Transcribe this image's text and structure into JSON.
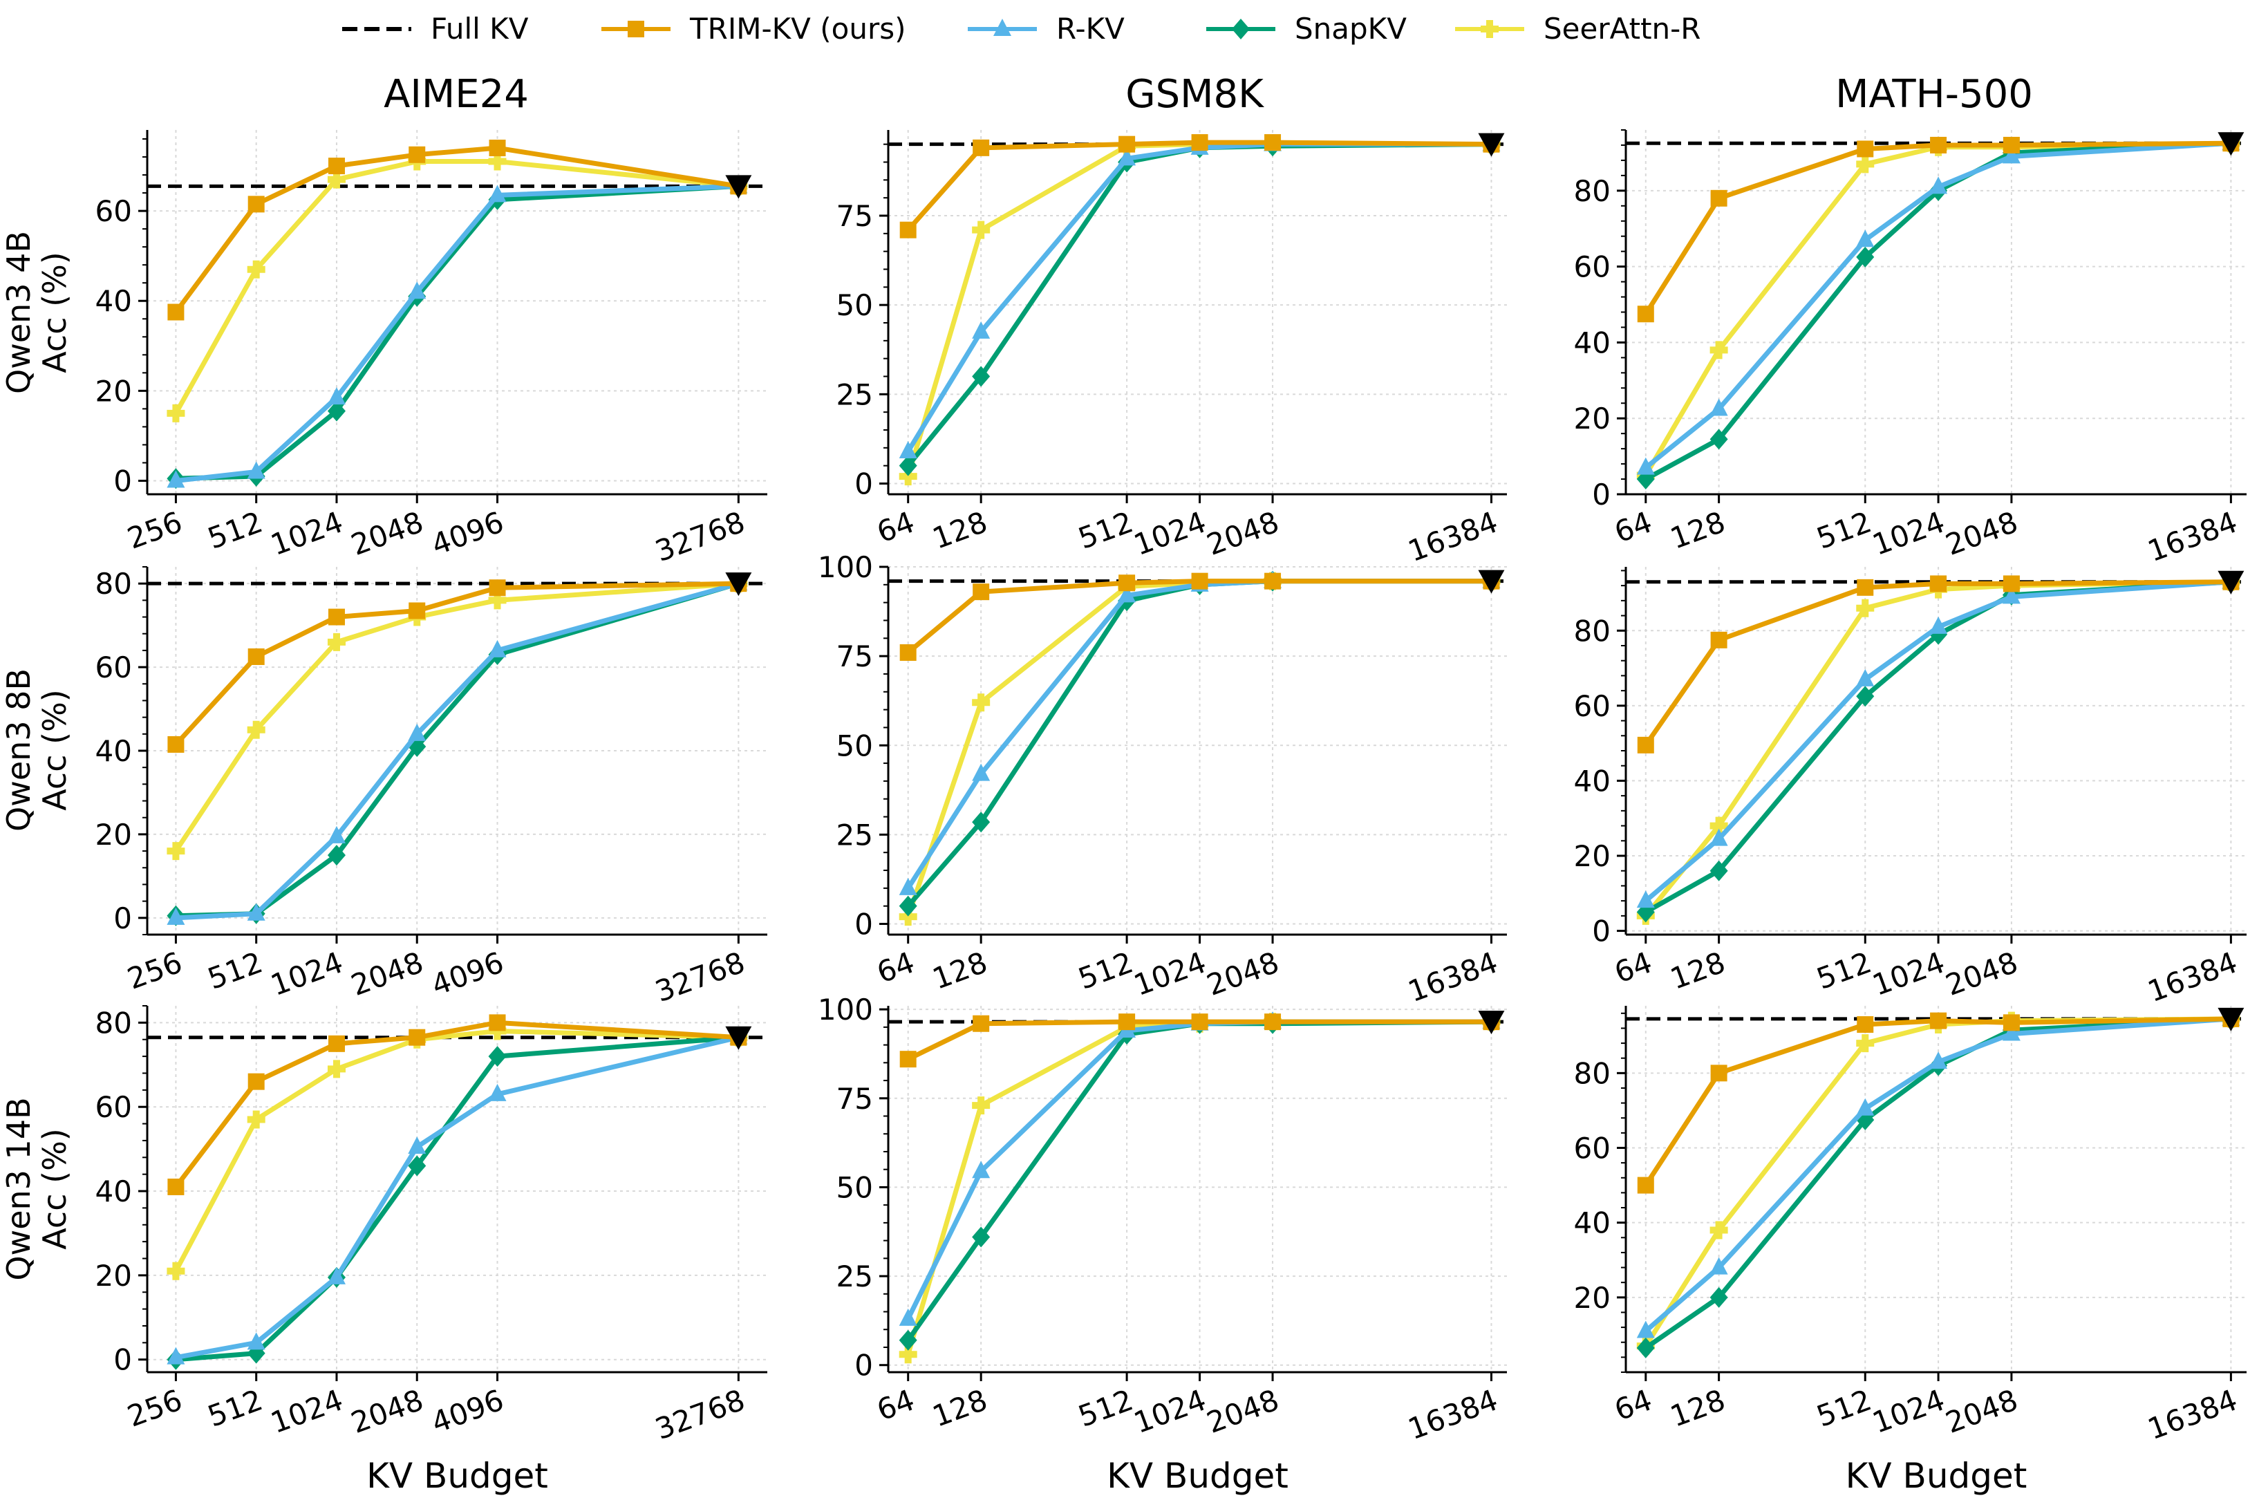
{
  "figure": {
    "column_titles": [
      "AIME24",
      "GSM8K",
      "MATH-500"
    ],
    "row_labels": [
      {
        "line1": "Qwen3 4B",
        "line2": "Acc (%)"
      },
      {
        "line1": "Qwen3 8B",
        "line2": "Acc (%)"
      },
      {
        "line1": "Qwen3 14B",
        "line2": "Acc (%)"
      }
    ],
    "xlabel": "KV Budget"
  },
  "legend": [
    {
      "name": "Full KV",
      "color": "#000000",
      "style": "dashed",
      "marker": "none"
    },
    {
      "name": "TRIM-KV (ours)",
      "color": "#E69F00",
      "style": "solid",
      "marker": "square"
    },
    {
      "name": "R-KV",
      "color": "#56B4E9",
      "style": "solid",
      "marker": "triangle"
    },
    {
      "name": "SnapKV",
      "color": "#009E73",
      "style": "solid",
      "marker": "diamond"
    },
    {
      "name": "SeerAttn-R",
      "color": "#F0E442",
      "style": "solid",
      "marker": "plus"
    }
  ],
  "chart_data": [
    {
      "type": "line",
      "title": "AIME24",
      "ylabel": "Qwen3 4B Acc (%)",
      "xlabel": "",
      "x": [
        256,
        512,
        1024,
        2048,
        4096,
        32768
      ],
      "xlim": [
        200,
        42000
      ],
      "xscale": "log2",
      "yticks": [
        0,
        20,
        40,
        60
      ],
      "ylim": [
        -3,
        78
      ],
      "full_kv": 65.5,
      "full_kv_x": 32768,
      "series": [
        {
          "name": "TRIM-KV (ours)",
          "values": [
            37.5,
            61.5,
            70,
            72.5,
            74,
            65.5
          ]
        },
        {
          "name": "R-KV",
          "values": [
            0,
            2,
            18.5,
            42,
            63.5,
            65.5
          ]
        },
        {
          "name": "SnapKV",
          "values": [
            0.5,
            1,
            15.5,
            41,
            62.5,
            65.5
          ]
        },
        {
          "name": "SeerAttn-R",
          "values": [
            15,
            47,
            67,
            71,
            71,
            65.5
          ]
        }
      ]
    },
    {
      "type": "line",
      "title": "GSM8K",
      "ylabel": "",
      "xlabel": "",
      "x": [
        64,
        128,
        512,
        1024,
        2048,
        16384
      ],
      "xlim": [
        53,
        19000
      ],
      "xscale": "log2",
      "yticks": [
        0,
        25,
        50,
        75
      ],
      "ylim": [
        -3,
        99
      ],
      "full_kv": 95,
      "full_kv_x": 16384,
      "series": [
        {
          "name": "TRIM-KV (ours)",
          "values": [
            71,
            94,
            95,
            95.5,
            95.5,
            95
          ]
        },
        {
          "name": "R-KV",
          "values": [
            9,
            42.5,
            91,
            94,
            95,
            95
          ]
        },
        {
          "name": "SnapKV",
          "values": [
            5,
            30,
            90,
            94,
            94.5,
            95
          ]
        },
        {
          "name": "SeerAttn-R",
          "values": [
            2,
            71,
            94.5,
            95,
            95,
            95
          ]
        }
      ]
    },
    {
      "type": "line",
      "title": "MATH-500",
      "ylabel": "",
      "xlabel": "",
      "x": [
        64,
        128,
        512,
        1024,
        2048,
        16384
      ],
      "xlim": [
        53,
        19000
      ],
      "xscale": "log2",
      "yticks": [
        0,
        20,
        40,
        60,
        80
      ],
      "ylim": [
        0,
        96
      ],
      "full_kv": 92.5,
      "full_kv_x": 16384,
      "series": [
        {
          "name": "TRIM-KV (ours)",
          "values": [
            47.5,
            78,
            91,
            92,
            92,
            92.5
          ]
        },
        {
          "name": "R-KV",
          "values": [
            7,
            22.5,
            67,
            81,
            89,
            92.5
          ]
        },
        {
          "name": "SnapKV",
          "values": [
            4,
            14.5,
            62.5,
            80,
            90,
            92.5
          ]
        },
        {
          "name": "SeerAttn-R",
          "values": [
            5,
            38,
            87,
            91.5,
            91.5,
            92.5
          ]
        }
      ]
    },
    {
      "type": "line",
      "title": "",
      "ylabel": "Qwen3 8B Acc (%)",
      "xlabel": "",
      "x": [
        256,
        512,
        1024,
        2048,
        4096,
        32768
      ],
      "xlim": [
        200,
        42000
      ],
      "xscale": "log2",
      "yticks": [
        0,
        20,
        40,
        60,
        80
      ],
      "ylim": [
        -4,
        84
      ],
      "full_kv": 80,
      "full_kv_x": 32768,
      "series": [
        {
          "name": "TRIM-KV (ours)",
          "values": [
            41.5,
            62.5,
            72,
            73.5,
            79,
            80
          ]
        },
        {
          "name": "R-KV",
          "values": [
            0,
            1,
            19.5,
            44,
            64,
            80
          ]
        },
        {
          "name": "SnapKV",
          "values": [
            0.5,
            1,
            15,
            41,
            63,
            80
          ]
        },
        {
          "name": "SeerAttn-R",
          "values": [
            16,
            45,
            66,
            72,
            76,
            80
          ]
        }
      ]
    },
    {
      "type": "line",
      "title": "",
      "ylabel": "",
      "xlabel": "",
      "x": [
        64,
        128,
        512,
        1024,
        2048,
        16384
      ],
      "xlim": [
        53,
        19000
      ],
      "xscale": "log2",
      "yticks": [
        0,
        25,
        50,
        75,
        100
      ],
      "ylim": [
        -3,
        100
      ],
      "full_kv": 96,
      "full_kv_x": 16384,
      "series": [
        {
          "name": "TRIM-KV (ours)",
          "values": [
            76,
            93,
            95.5,
            96,
            96,
            96
          ]
        },
        {
          "name": "R-KV",
          "values": [
            10,
            42,
            92,
            95,
            96,
            96
          ]
        },
        {
          "name": "SnapKV",
          "values": [
            5,
            28.5,
            90.5,
            95,
            96,
            96
          ]
        },
        {
          "name": "SeerAttn-R",
          "values": [
            2,
            62,
            94.5,
            95.5,
            96,
            96
          ]
        }
      ]
    },
    {
      "type": "line",
      "title": "",
      "ylabel": "",
      "xlabel": "",
      "x": [
        64,
        128,
        512,
        1024,
        2048,
        16384
      ],
      "xlim": [
        53,
        19000
      ],
      "xscale": "log2",
      "yticks": [
        0,
        20,
        40,
        60,
        80
      ],
      "ylim": [
        -1,
        97
      ],
      "full_kv": 93,
      "full_kv_x": 16384,
      "series": [
        {
          "name": "TRIM-KV (ours)",
          "values": [
            49.5,
            77.5,
            91.5,
            92.5,
            92.5,
            93
          ]
        },
        {
          "name": "R-KV",
          "values": [
            8,
            24.5,
            67,
            81,
            89,
            93
          ]
        },
        {
          "name": "SnapKV",
          "values": [
            5,
            16,
            62.5,
            79,
            89.5,
            93
          ]
        },
        {
          "name": "SeerAttn-R",
          "values": [
            4,
            28,
            86,
            91,
            92,
            93
          ]
        }
      ]
    },
    {
      "type": "line",
      "title": "",
      "ylabel": "Qwen3 14B Acc (%)",
      "xlabel": "KV Budget",
      "x": [
        256,
        512,
        1024,
        2048,
        4096,
        32768
      ],
      "xlim": [
        200,
        42000
      ],
      "xscale": "log2",
      "yticks": [
        0,
        20,
        40,
        60,
        80
      ],
      "ylim": [
        -3,
        84
      ],
      "full_kv": 76.5,
      "full_kv_x": 32768,
      "series": [
        {
          "name": "TRIM-KV (ours)",
          "values": [
            41,
            66,
            75,
            76.5,
            80,
            76.5
          ]
        },
        {
          "name": "R-KV",
          "values": [
            0.5,
            4,
            19.5,
            50.5,
            63,
            76.5
          ]
        },
        {
          "name": "SnapKV",
          "values": [
            0,
            1.5,
            19.5,
            46,
            72,
            76.5
          ]
        },
        {
          "name": "SeerAttn-R",
          "values": [
            21,
            57,
            69,
            76,
            78,
            76.5
          ]
        }
      ]
    },
    {
      "type": "line",
      "title": "",
      "ylabel": "",
      "xlabel": "KV Budget",
      "x": [
        64,
        128,
        512,
        1024,
        2048,
        16384
      ],
      "xlim": [
        53,
        19000
      ],
      "xscale": "log2",
      "yticks": [
        0,
        25,
        50,
        75,
        100
      ],
      "ylim": [
        -2,
        101
      ],
      "full_kv": 96.5,
      "full_kv_x": 16384,
      "series": [
        {
          "name": "TRIM-KV (ours)",
          "values": [
            86,
            96,
            96.5,
            96.5,
            96.5,
            96.5
          ]
        },
        {
          "name": "R-KV",
          "values": [
            13,
            54.5,
            94,
            96,
            96.5,
            96.5
          ]
        },
        {
          "name": "SnapKV",
          "values": [
            7,
            36,
            93,
            96,
            96,
            96.5
          ]
        },
        {
          "name": "SeerAttn-R",
          "values": [
            3,
            73,
            95,
            96,
            96.5,
            96.5
          ]
        }
      ]
    },
    {
      "type": "line",
      "title": "",
      "ylabel": "",
      "xlabel": "KV Budget",
      "x": [
        64,
        128,
        512,
        1024,
        2048,
        16384
      ],
      "xlim": [
        53,
        19000
      ],
      "xscale": "log2",
      "yticks": [
        20,
        40,
        60,
        80
      ],
      "ylim": [
        0,
        98
      ],
      "full_kv": 94.5,
      "full_kv_x": 16384,
      "series": [
        {
          "name": "TRIM-KV (ours)",
          "values": [
            50,
            80,
            93,
            94,
            93.5,
            94.5
          ]
        },
        {
          "name": "R-KV",
          "values": [
            11,
            28,
            70.5,
            83,
            90.5,
            94.5
          ]
        },
        {
          "name": "SnapKV",
          "values": [
            6.5,
            20,
            67.5,
            82,
            91.5,
            94.5
          ]
        },
        {
          "name": "SeerAttn-R",
          "values": [
            7,
            38,
            88,
            93,
            94,
            94.5
          ]
        }
      ]
    }
  ]
}
